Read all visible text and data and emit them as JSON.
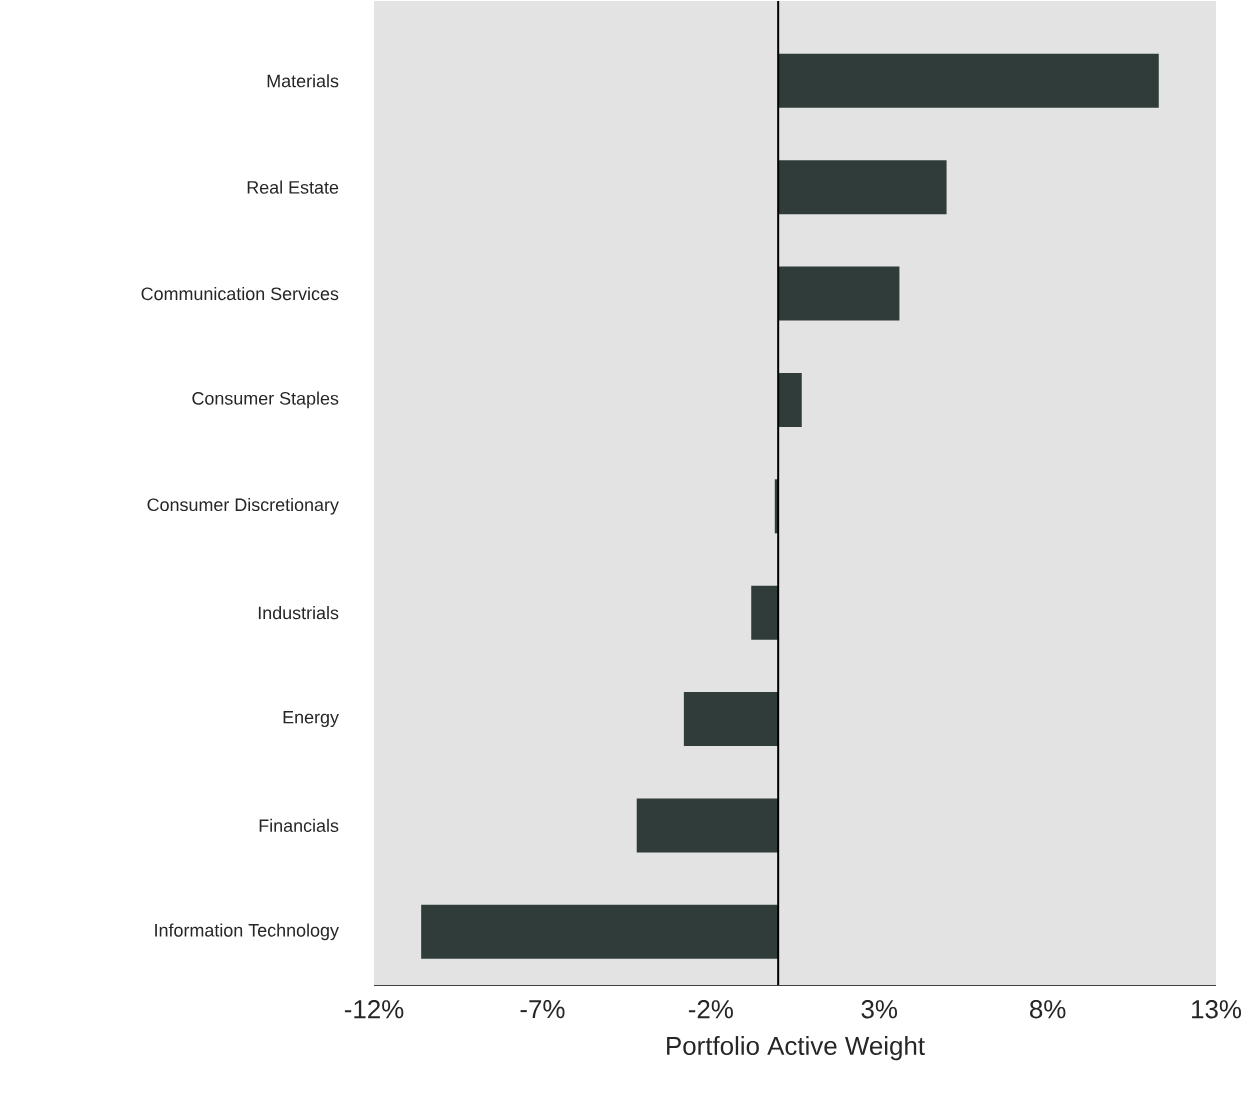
{
  "chart_data": {
    "type": "bar",
    "orientation": "horizontal",
    "xlabel": "Portfolio Active Weight",
    "categories": [
      "Materials",
      "Real Estate",
      "Communication Services",
      "Consumer Staples",
      "Consumer Discretionary",
      "Industrials",
      "Energy",
      "Financials",
      "Information Technology"
    ],
    "values": [
      11.3,
      5.0,
      3.6,
      0.7,
      -0.1,
      -0.8,
      -2.8,
      -4.2,
      -10.6
    ],
    "color": "#2f3c3a",
    "xlim": [
      -12,
      13
    ],
    "xticks": [
      {
        "value": -12,
        "label": "-12%"
      },
      {
        "value": -7,
        "label": "-7%"
      },
      {
        "value": -2,
        "label": "-2%"
      },
      {
        "value": 3,
        "label": "3%"
      },
      {
        "value": 8,
        "label": "8%"
      },
      {
        "value": 13,
        "label": "13%"
      }
    ],
    "ref_lines": [
      {
        "axis": "x",
        "value": 0,
        "color": "#000000"
      }
    ]
  }
}
